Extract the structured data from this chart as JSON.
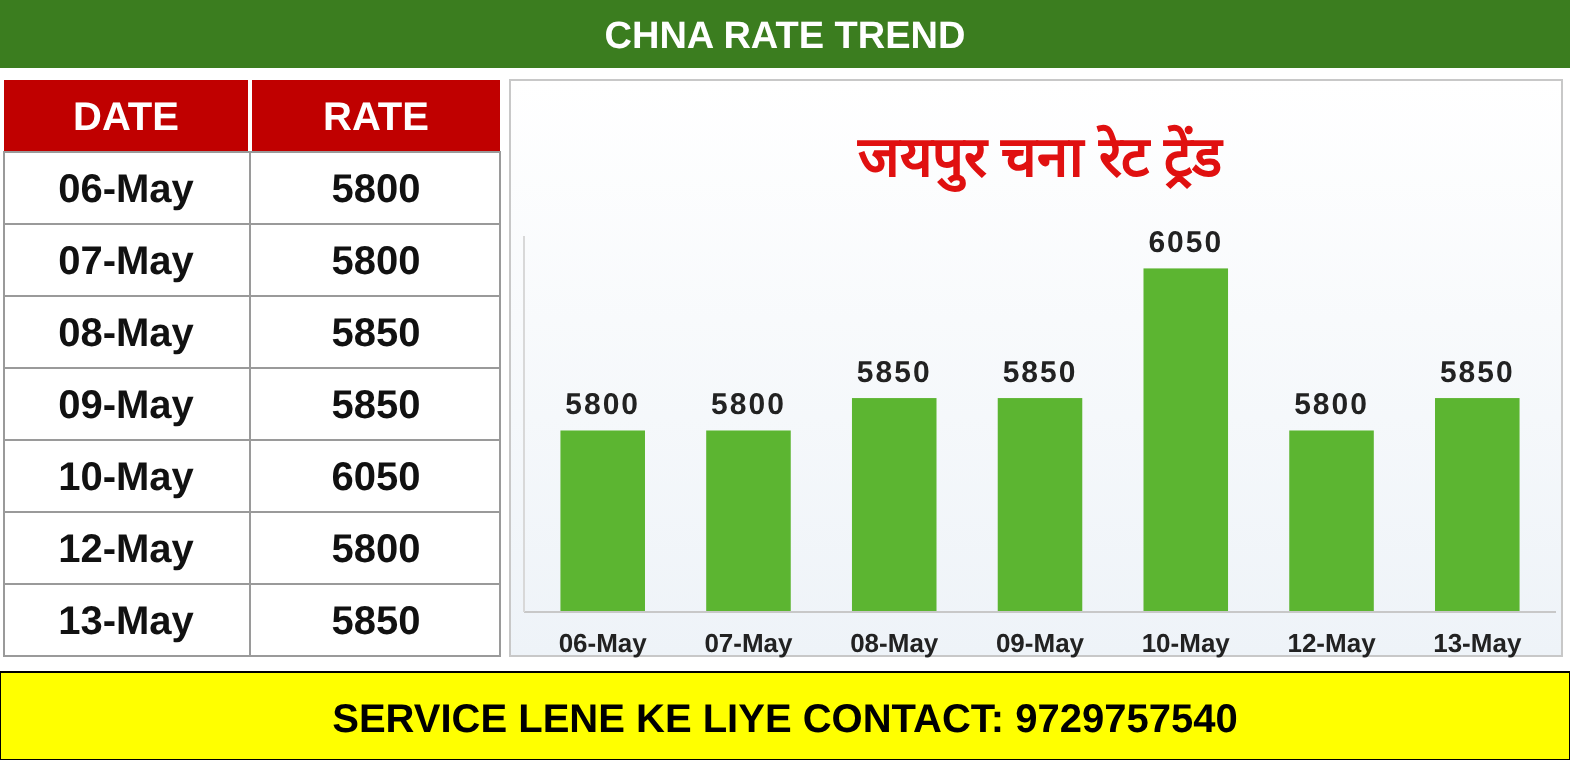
{
  "chart_data": [
    {
      "type": "other",
      "annotations": [
        "DATE",
        "RATE"
      ],
      "categories": [
        "06-May",
        "07-May",
        "08-May",
        "09-May",
        "10-May",
        "12-May",
        "13-May"
      ],
      "values": [
        5800,
        5800,
        5850,
        5850,
        6050,
        5800,
        5850
      ],
      "data_labels": true
    },
    {
      "type": "bar",
      "title": "CHNA RATE TREND",
      "subtitle": "जयपुर चना रेट ट्रेंड",
      "categories": [
        "06-May",
        "07-May",
        "08-May",
        "09-May",
        "10-May",
        "12-May",
        "13-May"
      ],
      "values": [
        5800,
        5800,
        5850,
        5850,
        6050,
        5800,
        5850
      ],
      "color": "#5cb531",
      "ylim": [
        5520,
        6100
      ],
      "tick_labels": "x",
      "data_labels": true,
      "annotations": [
        "SERVICE LENE KE LIYE CONTACT: 9729757540"
      ]
    }
  ]
}
